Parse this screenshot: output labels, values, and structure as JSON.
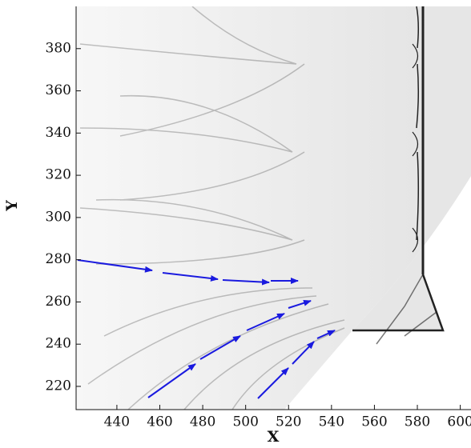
{
  "chart_data": {
    "type": "image",
    "x_label": "X",
    "y_label": "Y",
    "xlim": [
      421,
      605
    ],
    "ylim": [
      209,
      400
    ],
    "xticks": [
      440,
      460,
      480,
      500,
      520,
      540,
      560,
      580,
      600
    ],
    "yticks": [
      220,
      240,
      260,
      280,
      300,
      320,
      340,
      360,
      380
    ]
  }
}
